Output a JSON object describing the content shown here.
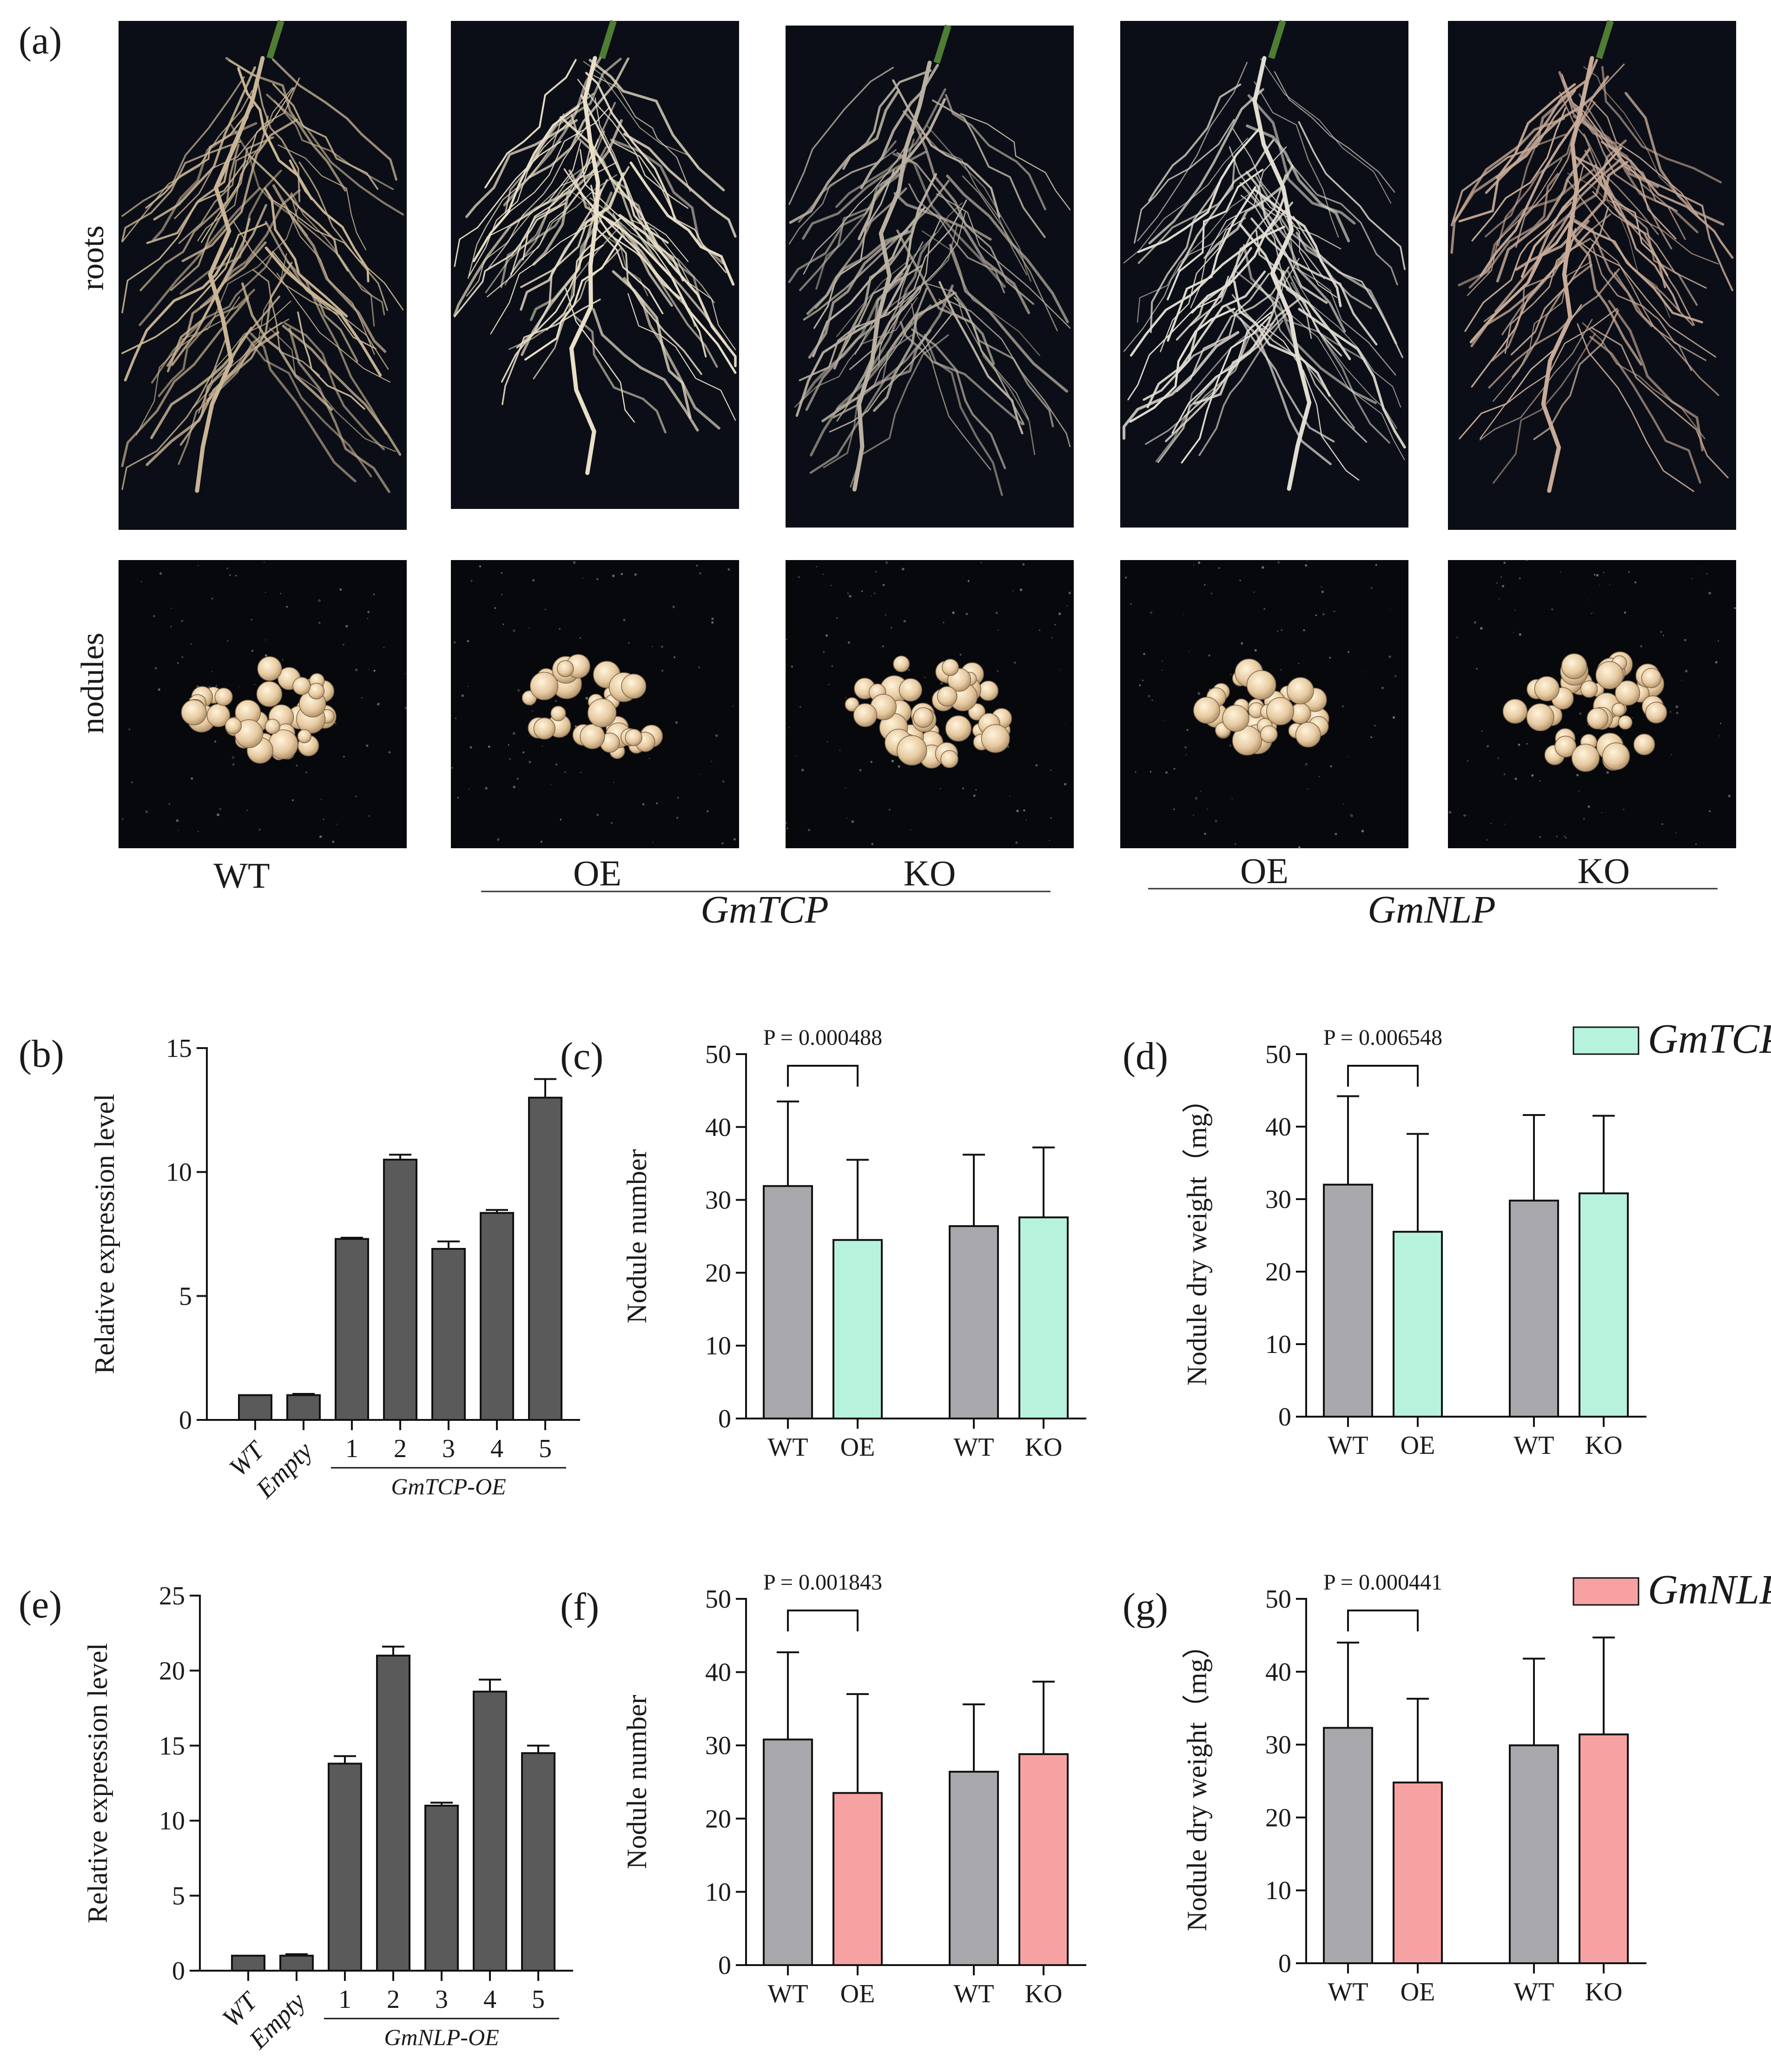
{
  "panel_a": {
    "label": "(a)",
    "row_labels": [
      "roots",
      "nodules"
    ],
    "genotypes": [
      "WT",
      "OE",
      "KO",
      "OE",
      "KO"
    ],
    "group_labels": [
      "GmTCP",
      "GmNLP"
    ]
  },
  "legend": {
    "tcp": {
      "label": "GmTCP",
      "color": "#b7f3dc"
    },
    "nlp": {
      "label": "GmNLP",
      "color": "#f7a2a2"
    }
  },
  "colors": {
    "dark_bar": "#5a5a5a",
    "grey_bar": "#a8a7ab",
    "tcp": "#b7f3dc",
    "nlp": "#f7a2a2"
  },
  "chart_data": [
    {
      "panel": "(b)",
      "type": "bar",
      "ylabel": "Relative expression level",
      "ylim": [
        0,
        15
      ],
      "yticks": [
        0,
        5,
        10,
        15
      ],
      "categories": [
        "WT",
        "Empty",
        "1",
        "2",
        "3",
        "4",
        "5"
      ],
      "italic_categories": [
        "WT",
        "Empty"
      ],
      "group_label": "GmTCP-OE",
      "values": [
        1.0,
        1.0,
        7.3,
        10.5,
        6.9,
        8.35,
        13.0
      ],
      "errors": [
        0.0,
        0.05,
        0.05,
        0.2,
        0.3,
        0.12,
        0.75
      ]
    },
    {
      "panel": "(c)",
      "type": "bar",
      "ylabel": "Nodule number",
      "ylim": [
        0,
        50
      ],
      "yticks": [
        0,
        10,
        20,
        30,
        40,
        50
      ],
      "categories": [
        "WT",
        "OE",
        "WT",
        "KO"
      ],
      "values": [
        31.9,
        24.5,
        26.4,
        27.6
      ],
      "errors": [
        11.6,
        11.0,
        9.8,
        9.6
      ],
      "bar_colors": [
        "grey",
        "tcp",
        "grey",
        "tcp"
      ],
      "significance": {
        "label": "P = 0.000488",
        "between": [
          0,
          1
        ]
      }
    },
    {
      "panel": "(d)",
      "type": "bar",
      "ylabel": "Nodule dry weight（mg）",
      "ylim": [
        0,
        50
      ],
      "yticks": [
        0,
        10,
        20,
        30,
        40,
        50
      ],
      "categories": [
        "WT",
        "OE",
        "WT",
        "KO"
      ],
      "values": [
        32.0,
        25.5,
        29.8,
        30.8
      ],
      "errors": [
        12.2,
        13.5,
        11.8,
        10.7
      ],
      "bar_colors": [
        "grey",
        "tcp",
        "grey",
        "tcp"
      ],
      "significance": {
        "label": "P = 0.006548",
        "between": [
          0,
          1
        ]
      }
    },
    {
      "panel": "(e)",
      "type": "bar",
      "ylabel": "Relative expression level",
      "ylim": [
        0,
        25
      ],
      "yticks": [
        0,
        5,
        10,
        15,
        20,
        25
      ],
      "categories": [
        "WT",
        "Empty",
        "1",
        "2",
        "3",
        "4",
        "5"
      ],
      "italic_categories": [
        "WT",
        "Empty"
      ],
      "group_label": "GmNLP-OE",
      "values": [
        1.0,
        1.0,
        13.8,
        21.0,
        11.0,
        18.6,
        14.5
      ],
      "errors": [
        0.0,
        0.1,
        0.5,
        0.6,
        0.2,
        0.8,
        0.5
      ]
    },
    {
      "panel": "(f)",
      "type": "bar",
      "ylabel": "Nodule number",
      "ylim": [
        0,
        50
      ],
      "yticks": [
        0,
        10,
        20,
        30,
        40,
        50
      ],
      "categories": [
        "WT",
        "OE",
        "WT",
        "KO"
      ],
      "values": [
        30.8,
        23.5,
        26.4,
        28.8
      ],
      "errors": [
        11.9,
        13.5,
        9.2,
        9.9
      ],
      "bar_colors": [
        "grey",
        "nlp",
        "grey",
        "nlp"
      ],
      "significance": {
        "label": "P = 0.001843",
        "between": [
          0,
          1
        ]
      }
    },
    {
      "panel": "(g)",
      "type": "bar",
      "ylabel": "Nodule dry weight（mg）",
      "ylim": [
        0,
        50
      ],
      "yticks": [
        0,
        10,
        20,
        30,
        40,
        50
      ],
      "categories": [
        "WT",
        "OE",
        "WT",
        "KO"
      ],
      "values": [
        32.3,
        24.8,
        29.9,
        31.4
      ],
      "errors": [
        11.7,
        11.5,
        11.9,
        13.3
      ],
      "bar_colors": [
        "grey",
        "nlp",
        "grey",
        "nlp"
      ],
      "significance": {
        "label": "P = 0.000441",
        "between": [
          0,
          1
        ]
      }
    }
  ]
}
